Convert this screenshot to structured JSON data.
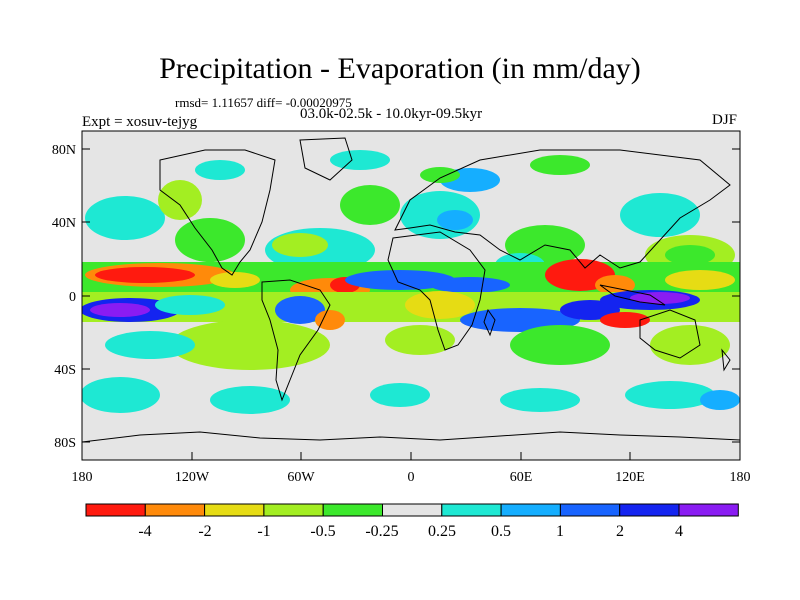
{
  "title": "Precipitation - Evaporation (in mm/day)",
  "stats": "rmsd= 1.11657 diff= -0.00020975",
  "experiment": "Expt = xosuv-tejyg",
  "period": "03.0k-02.5k - 10.0kyr-09.5kyr",
  "season": "DJF",
  "y_ticks": [
    "80N",
    "40N",
    "0",
    "40S",
    "80S"
  ],
  "x_ticks": [
    "180",
    "120W",
    "60W",
    "0",
    "60E",
    "120E",
    "180"
  ],
  "colorbar": {
    "labels": [
      "-4",
      "-2",
      "-1",
      "-0.5",
      "-0.25",
      "0.25",
      "0.5",
      "1",
      "2",
      "4"
    ],
    "colors": [
      "#ff1a0f",
      "#ff8a0a",
      "#e6dc14",
      "#a3ee22",
      "#3ce82c",
      "#e5e5e5",
      "#1ee8d3",
      "#15aeff",
      "#1864ff",
      "#1424f0",
      "#8a1cf2"
    ]
  },
  "map_colors": {
    "background": "#e5e5e5",
    "strong_dry": "#ff1a0f",
    "dry_orange": "#ff8a0a",
    "dry_yellow": "#e6dc14",
    "light_green": "#a3ee22",
    "green": "#3ce82c",
    "cyan": "#1ee8d3",
    "sky": "#15aeff",
    "blue": "#1864ff",
    "dark_blue": "#1424f0",
    "purple": "#8a1cf2"
  }
}
